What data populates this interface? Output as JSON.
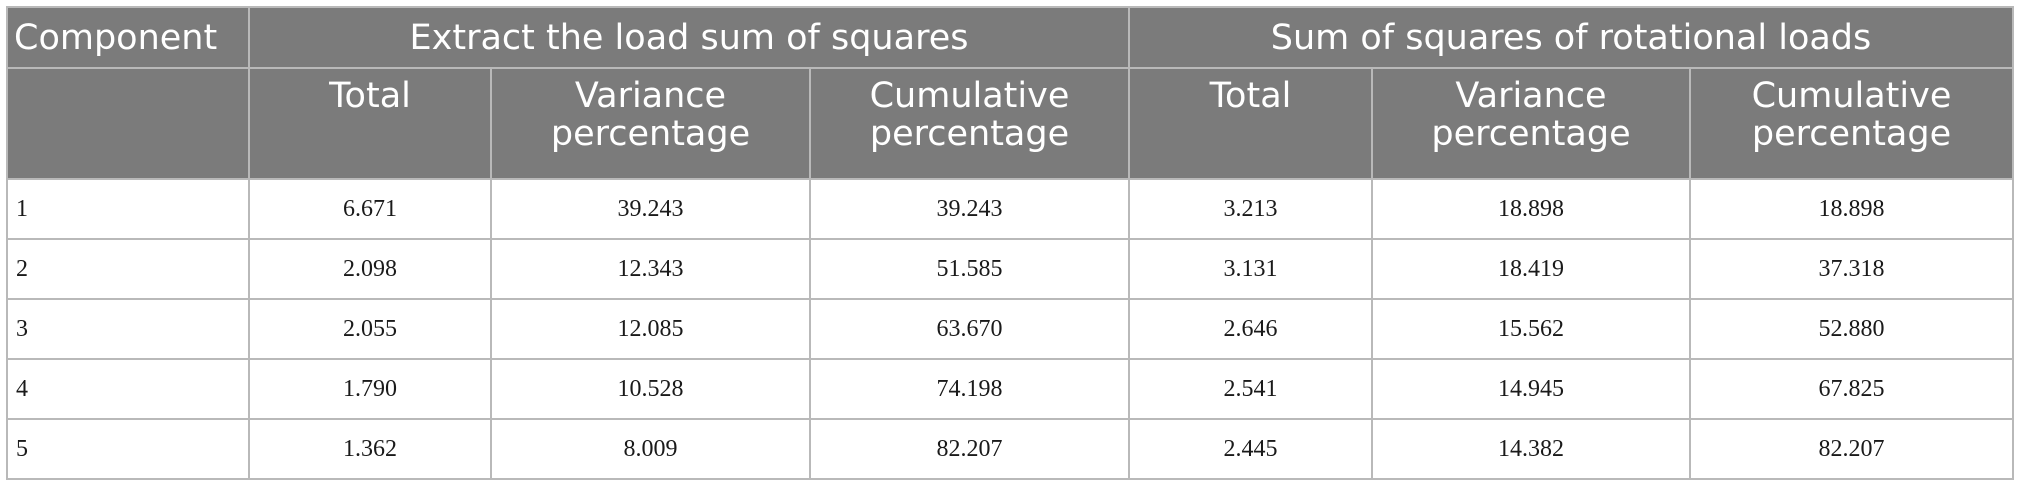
{
  "table": {
    "header_component": "Component",
    "group_extract": "Extract the load sum of squares",
    "group_rotational": "Sum of squares of rotational loads",
    "columns": [
      "Total",
      "Variance percentage",
      "Cumulative percentage",
      "Total",
      "Variance percentage",
      "Cumulative percentage"
    ],
    "rows": [
      {
        "component": "1",
        "values": [
          "6.671",
          "39.243",
          "39.243",
          "3.213",
          "18.898",
          "18.898"
        ]
      },
      {
        "component": "2",
        "values": [
          "2.098",
          "12.343",
          "51.585",
          "3.131",
          "18.419",
          "37.318"
        ]
      },
      {
        "component": "3",
        "values": [
          "2.055",
          "12.085",
          "63.670",
          "2.646",
          "15.562",
          "52.880"
        ]
      },
      {
        "component": "4",
        "values": [
          "1.790",
          "10.528",
          "74.198",
          "2.541",
          "14.945",
          "67.825"
        ]
      },
      {
        "component": "5",
        "values": [
          "1.362",
          "8.009",
          "82.207",
          "2.445",
          "14.382",
          "82.207"
        ]
      }
    ]
  }
}
